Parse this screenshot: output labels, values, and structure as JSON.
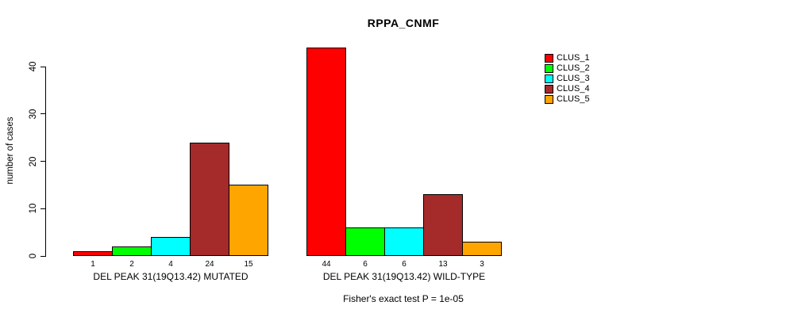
{
  "chart_data": {
    "type": "bar",
    "title": "RPPA_CNMF",
    "ylabel": "number of cases",
    "footnote": "Fisher's exact test P = 1e-05",
    "yticks": [
      0,
      10,
      20,
      30,
      40
    ],
    "ylim": [
      0,
      44
    ],
    "grid": false,
    "legend_position": "right",
    "bar_value_labels_shown": true,
    "series": [
      {
        "name": "CLUS_1",
        "color": "#FF0000"
      },
      {
        "name": "CLUS_2",
        "color": "#00FF00"
      },
      {
        "name": "CLUS_3",
        "color": "#00FFFF"
      },
      {
        "name": "CLUS_4",
        "color": "#A52A2A"
      },
      {
        "name": "CLUS_5",
        "color": "#FFA500"
      }
    ],
    "groups": [
      {
        "label": "DEL PEAK 31(19Q13.42) MUTATED",
        "values": [
          1,
          2,
          4,
          24,
          15
        ]
      },
      {
        "label": "DEL PEAK 31(19Q13.42) WILD-TYPE",
        "values": [
          44,
          6,
          6,
          13,
          3
        ]
      }
    ]
  }
}
